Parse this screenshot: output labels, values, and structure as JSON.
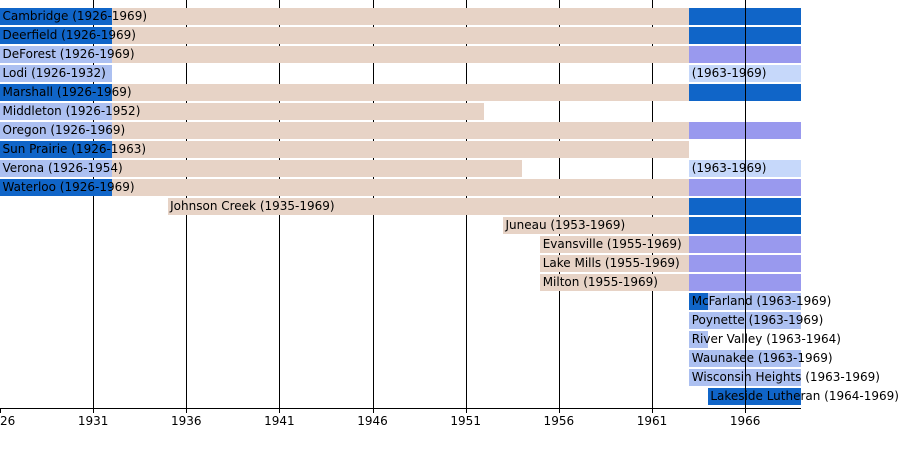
{
  "chart_data": {
    "type": "bar",
    "subtype": "membership-timeline-gantt",
    "title": "",
    "x_axis": {
      "start_year": 1926,
      "end_year": 1969,
      "tick_labels": [
        {
          "year": 1926,
          "text": "26"
        },
        {
          "year": 1931,
          "text": "1931"
        },
        {
          "year": 1936,
          "text": "1936"
        },
        {
          "year": 1941,
          "text": "1941"
        },
        {
          "year": 1946,
          "text": "1946"
        },
        {
          "year": 1951,
          "text": "1951"
        },
        {
          "year": 1956,
          "text": "1956"
        },
        {
          "year": 1961,
          "text": "1961"
        },
        {
          "year": 1966,
          "text": "1966"
        }
      ],
      "grid_years": [
        1931,
        1936,
        1941,
        1946,
        1951,
        1956,
        1961,
        1966
      ],
      "grid_years_drawn_over_bars": [
        1966
      ]
    },
    "colors": {
      "dark_blue": "#1065C8",
      "periwinkle": "#9999EE",
      "light_periwinkle": "#ACC0F1",
      "pale_blue": "#C6D8FA",
      "tan": "#E7D3C6"
    },
    "rows": [
      {
        "name": "cambridge",
        "label": "Cambridge (1926-1969)",
        "label_year": 1926,
        "segments": [
          {
            "from": 1926,
            "to": 1932,
            "color": "dark_blue"
          },
          {
            "from": 1932,
            "to": 1963,
            "color": "tan"
          },
          {
            "from": 1963,
            "to": 1969,
            "color": "dark_blue"
          }
        ]
      },
      {
        "name": "deerfield",
        "label": "Deerfield (1926-1969)",
        "label_year": 1926,
        "segments": [
          {
            "from": 1926,
            "to": 1932,
            "color": "dark_blue"
          },
          {
            "from": 1932,
            "to": 1963,
            "color": "tan"
          },
          {
            "from": 1963,
            "to": 1969,
            "color": "dark_blue"
          }
        ]
      },
      {
        "name": "deforest",
        "label": "DeForest (1926-1969)",
        "label_year": 1926,
        "segments": [
          {
            "from": 1926,
            "to": 1932,
            "color": "light_periwinkle"
          },
          {
            "from": 1932,
            "to": 1963,
            "color": "tan"
          },
          {
            "from": 1963,
            "to": 1969,
            "color": "periwinkle"
          }
        ]
      },
      {
        "name": "lodi",
        "label": "Lodi (1926-1932)",
        "label_year": 1926,
        "segments": [
          {
            "from": 1926,
            "to": 1932,
            "color": "light_periwinkle"
          },
          {
            "from": 1963,
            "to": 1969,
            "color": "pale_blue"
          }
        ],
        "label2": {
          "text": "(1963-1969)",
          "year": 1963
        }
      },
      {
        "name": "marshall",
        "label": "Marshall (1926-1969)",
        "label_year": 1926,
        "segments": [
          {
            "from": 1926,
            "to": 1932,
            "color": "dark_blue"
          },
          {
            "from": 1932,
            "to": 1963,
            "color": "tan"
          },
          {
            "from": 1963,
            "to": 1969,
            "color": "dark_blue"
          }
        ]
      },
      {
        "name": "middleton",
        "label": "Middleton (1926-1952)",
        "label_year": 1926,
        "segments": [
          {
            "from": 1926,
            "to": 1932,
            "color": "light_periwinkle"
          },
          {
            "from": 1932,
            "to": 1952,
            "color": "tan"
          }
        ]
      },
      {
        "name": "oregon",
        "label": "Oregon (1926-1969)",
        "label_year": 1926,
        "segments": [
          {
            "from": 1926,
            "to": 1932,
            "color": "light_periwinkle"
          },
          {
            "from": 1932,
            "to": 1963,
            "color": "tan"
          },
          {
            "from": 1963,
            "to": 1969,
            "color": "periwinkle"
          }
        ]
      },
      {
        "name": "sun-prairie",
        "label": "Sun Prairie (1926-1963)",
        "label_year": 1926,
        "segments": [
          {
            "from": 1926,
            "to": 1932,
            "color": "dark_blue"
          },
          {
            "from": 1932,
            "to": 1963,
            "color": "tan"
          }
        ]
      },
      {
        "name": "verona",
        "label": "Verona (1926-1954)",
        "label_year": 1926,
        "segments": [
          {
            "from": 1926,
            "to": 1932,
            "color": "light_periwinkle"
          },
          {
            "from": 1932,
            "to": 1954,
            "color": "tan"
          },
          {
            "from": 1963,
            "to": 1969,
            "color": "pale_blue"
          }
        ],
        "label2": {
          "text": "(1963-1969)",
          "year": 1963
        }
      },
      {
        "name": "waterloo",
        "label": "Waterloo (1926-1969)",
        "label_year": 1926,
        "segments": [
          {
            "from": 1926,
            "to": 1932,
            "color": "dark_blue"
          },
          {
            "from": 1932,
            "to": 1963,
            "color": "tan"
          },
          {
            "from": 1963,
            "to": 1969,
            "color": "periwinkle"
          }
        ]
      },
      {
        "name": "johnson-creek",
        "label": "Johnson Creek (1935-1969)",
        "label_year": 1935,
        "segments": [
          {
            "from": 1935,
            "to": 1963,
            "color": "tan"
          },
          {
            "from": 1963,
            "to": 1969,
            "color": "dark_blue"
          }
        ]
      },
      {
        "name": "juneau",
        "label": "Juneau (1953-1969)",
        "label_year": 1953,
        "segments": [
          {
            "from": 1953,
            "to": 1963,
            "color": "tan"
          },
          {
            "from": 1963,
            "to": 1969,
            "color": "dark_blue"
          }
        ]
      },
      {
        "name": "evansville",
        "label": "Evansville (1955-1969)",
        "label_year": 1955,
        "segments": [
          {
            "from": 1955,
            "to": 1963,
            "color": "tan"
          },
          {
            "from": 1963,
            "to": 1969,
            "color": "periwinkle"
          }
        ]
      },
      {
        "name": "lake-mills",
        "label": "Lake Mills (1955-1969)",
        "label_year": 1955,
        "segments": [
          {
            "from": 1955,
            "to": 1963,
            "color": "tan"
          },
          {
            "from": 1963,
            "to": 1969,
            "color": "periwinkle"
          }
        ]
      },
      {
        "name": "milton",
        "label": "Milton (1955-1969)",
        "label_year": 1955,
        "segments": [
          {
            "from": 1955,
            "to": 1963,
            "color": "tan"
          },
          {
            "from": 1963,
            "to": 1969,
            "color": "periwinkle"
          }
        ]
      },
      {
        "name": "mcfarland",
        "label": "McFarland (1963-1969)",
        "label_year": 1963,
        "segments": [
          {
            "from": 1963,
            "to": 1964,
            "color": "dark_blue"
          },
          {
            "from": 1964,
            "to": 1969,
            "color": "light_periwinkle"
          }
        ]
      },
      {
        "name": "poynette",
        "label": "Poynette (1963-1969)",
        "label_year": 1963,
        "segments": [
          {
            "from": 1963,
            "to": 1969,
            "color": "light_periwinkle"
          }
        ]
      },
      {
        "name": "river-valley",
        "label": "River Valley (1963-1964)",
        "label_year": 1963,
        "segments": [
          {
            "from": 1963,
            "to": 1964,
            "color": "light_periwinkle"
          }
        ]
      },
      {
        "name": "waunakee",
        "label": "Waunakee (1963-1969)",
        "label_year": 1963,
        "segments": [
          {
            "from": 1963,
            "to": 1969,
            "color": "light_periwinkle"
          }
        ]
      },
      {
        "name": "wisconsin-heights",
        "label": "Wisconsin Heights (1963-1969)",
        "label_year": 1963,
        "segments": [
          {
            "from": 1963,
            "to": 1969,
            "color": "light_periwinkle"
          }
        ]
      },
      {
        "name": "lakeside-lutheran",
        "label": "Lakeside Lutheran (1964-1969)",
        "label_year": 1964,
        "segments": [
          {
            "from": 1964,
            "to": 1969,
            "color": "dark_blue"
          }
        ]
      }
    ]
  }
}
